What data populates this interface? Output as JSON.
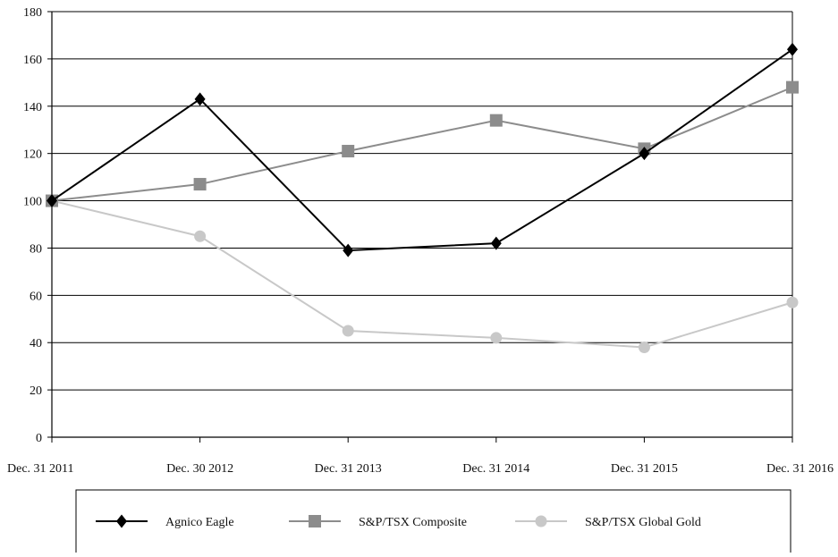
{
  "chart_data": {
    "type": "line",
    "categories": [
      "Dec. 31 2011",
      "Dec. 30 2012",
      "Dec. 31 2013",
      "Dec. 31 2014",
      "Dec. 31 2015",
      "Dec. 31 2016"
    ],
    "ylim": [
      0,
      180
    ],
    "yticks": [
      0,
      20,
      40,
      60,
      80,
      100,
      120,
      140,
      160,
      180
    ],
    "grid": "horizontal",
    "legend_position": "bottom",
    "series": [
      {
        "name": "Agnico Eagle",
        "values": [
          100,
          143,
          79,
          82,
          120,
          164
        ],
        "color": "#000000",
        "marker": "diamond"
      },
      {
        "name": "S&P/TSX Composite",
        "values": [
          100,
          107,
          121,
          134,
          122,
          148
        ],
        "color": "#8c8c8c",
        "marker": "square"
      },
      {
        "name": "S&P/TSX Global Gold",
        "values": [
          100,
          85,
          45,
          42,
          38,
          57
        ],
        "color": "#c8c8c8",
        "marker": "circle"
      }
    ]
  }
}
